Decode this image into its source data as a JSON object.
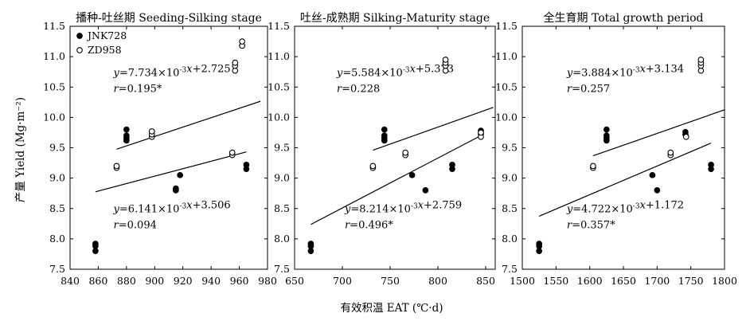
{
  "ylabel": "产量 Yield (Mg·m⁻²)",
  "xlabel": "有效积温 EAT (℃·d)",
  "chart_data": [
    {
      "type": "scatter",
      "title": "播种-吐丝期 Seeding-Silking stage",
      "xlim": [
        840,
        980
      ],
      "ylim": [
        7.5,
        11.5
      ],
      "xticks": [
        840,
        860,
        880,
        900,
        920,
        940,
        960,
        980
      ],
      "yticks": [
        7.5,
        8.0,
        8.5,
        9.0,
        9.5,
        10.0,
        10.5,
        11.0,
        11.5
      ],
      "legend": [
        "JNK728",
        "ZD958"
      ],
      "series": [
        {
          "name": "JNK728",
          "marker": "filled",
          "points": [
            [
              858,
              7.8
            ],
            [
              858,
              7.88
            ],
            [
              858,
              7.92
            ],
            [
              880,
              9.62
            ],
            [
              880,
              9.66
            ],
            [
              880,
              9.7
            ],
            [
              880,
              9.8
            ],
            [
              915,
              8.8
            ],
            [
              915,
              8.83
            ],
            [
              918,
              9.05
            ],
            [
              965,
              9.15
            ],
            [
              965,
              9.22
            ]
          ]
        },
        {
          "name": "ZD958",
          "marker": "open",
          "points": [
            [
              873,
              9.17
            ],
            [
              873,
              9.2
            ],
            [
              898,
              9.68
            ],
            [
              898,
              9.72
            ],
            [
              898,
              9.77
            ],
            [
              955,
              9.38
            ],
            [
              955,
              9.42
            ],
            [
              957,
              10.77
            ],
            [
              957,
              10.85
            ],
            [
              957,
              10.9
            ],
            [
              962,
              11.18
            ],
            [
              962,
              11.25
            ]
          ]
        }
      ],
      "fits": [
        {
          "series": "ZD958",
          "slope": 0.007734,
          "intercept": 2.725,
          "x": [
            873,
            975
          ],
          "eq": "y=7.734×10⁻³x+2.725",
          "r": "r=0.195*"
        },
        {
          "series": "JNK728",
          "slope": 0.006141,
          "intercept": 3.506,
          "x": [
            858,
            965
          ],
          "eq": "y=6.141×10⁻³x+3.506",
          "r": "r=0.094"
        }
      ]
    },
    {
      "type": "scatter",
      "title": "吐丝-成熟期 Silking-Maturity stage",
      "xlim": [
        650,
        860
      ],
      "ylim": [
        7.5,
        11.5
      ],
      "xticks": [
        650,
        700,
        750,
        800,
        850
      ],
      "yticks": [
        7.5,
        8.0,
        8.5,
        9.0,
        9.5,
        10.0,
        10.5,
        11.0,
        11.5
      ],
      "series": [
        {
          "name": "JNK728",
          "marker": "filled",
          "points": [
            [
              667,
              7.8
            ],
            [
              667,
              7.88
            ],
            [
              667,
              7.92
            ],
            [
              744,
              9.62
            ],
            [
              744,
              9.66
            ],
            [
              744,
              9.7
            ],
            [
              744,
              9.8
            ],
            [
              773,
              9.05
            ],
            [
              787,
              8.8
            ],
            [
              815,
              9.15
            ],
            [
              815,
              9.22
            ],
            [
              845,
              9.73
            ],
            [
              845,
              9.78
            ]
          ]
        },
        {
          "name": "ZD958",
          "marker": "open",
          "points": [
            [
              732,
              9.17
            ],
            [
              732,
              9.2
            ],
            [
              766,
              9.38
            ],
            [
              766,
              9.42
            ],
            [
              808,
              10.77
            ],
            [
              808,
              10.85
            ],
            [
              808,
              10.9
            ],
            [
              808,
              10.95
            ],
            [
              845,
              9.68
            ],
            [
              845,
              9.75
            ]
          ]
        }
      ],
      "fits": [
        {
          "series": "ZD958",
          "slope": 0.005584,
          "intercept": 5.373,
          "x": [
            732,
            858
          ],
          "eq": "y=5.584×10⁻³x+5.373",
          "r": "r=0.228"
        },
        {
          "series": "JNK728",
          "slope": 0.008214,
          "intercept": 2.759,
          "x": [
            667,
            845
          ],
          "eq": "y=8.214×10⁻³x+2.759",
          "r": "r=0.496*"
        }
      ]
    },
    {
      "type": "scatter",
      "title": "全生育期 Total growth period",
      "xlim": [
        1500,
        1800
      ],
      "ylim": [
        7.5,
        11.5
      ],
      "xticks": [
        1500,
        1550,
        1600,
        1650,
        1700,
        1750,
        1800
      ],
      "yticks": [
        7.5,
        8.0,
        8.5,
        9.0,
        9.5,
        10.0,
        10.5,
        11.0,
        11.5
      ],
      "series": [
        {
          "name": "JNK728",
          "marker": "filled",
          "points": [
            [
              1525,
              7.8
            ],
            [
              1525,
              7.88
            ],
            [
              1525,
              7.92
            ],
            [
              1625,
              9.62
            ],
            [
              1625,
              9.66
            ],
            [
              1625,
              9.7
            ],
            [
              1625,
              9.8
            ],
            [
              1693,
              9.05
            ],
            [
              1700,
              8.8
            ],
            [
              1742,
              9.72
            ],
            [
              1742,
              9.76
            ],
            [
              1780,
              9.15
            ],
            [
              1780,
              9.22
            ]
          ]
        },
        {
          "name": "ZD958",
          "marker": "open",
          "points": [
            [
              1605,
              9.17
            ],
            [
              1605,
              9.2
            ],
            [
              1720,
              9.38
            ],
            [
              1720,
              9.42
            ],
            [
              1743,
              9.68
            ],
            [
              1765,
              10.77
            ],
            [
              1765,
              10.85
            ],
            [
              1765,
              10.9
            ],
            [
              1765,
              10.95
            ]
          ]
        }
      ],
      "fits": [
        {
          "series": "ZD958",
          "slope": 0.003884,
          "intercept": 3.134,
          "x": [
            1605,
            1800
          ],
          "eq": "y=3.884×10⁻³x+3.134",
          "r": "r=0.257"
        },
        {
          "series": "JNK728",
          "slope": 0.004722,
          "intercept": 1.172,
          "x": [
            1525,
            1780
          ],
          "eq": "y=4.722×10⁻³x+1.172",
          "r": "r=0.357*"
        }
      ]
    }
  ]
}
